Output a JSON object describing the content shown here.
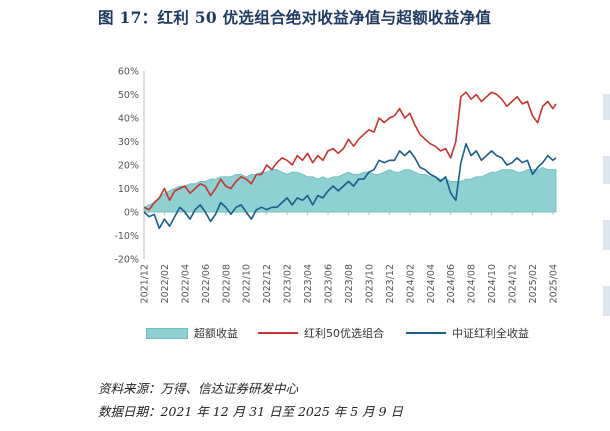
{
  "figure": {
    "title": "图 17：红利 50 优选组合绝对收益净值与超额收益净值",
    "source": "资料来源：万得、信达证券研发中心",
    "date_range": "数据日期：2021 年 12 月 31 日至 2025 年 5 月 9 日"
  },
  "colors": {
    "excess_fill": "#8fd1d3",
    "excess_stroke": "#66bcbf",
    "portfolio": "#c8342f",
    "index": "#1a5c8a",
    "axis_text": "#555555",
    "title": "#1f3a60"
  },
  "chart_data": {
    "type": "area",
    "ylim": [
      -20,
      60
    ],
    "y_ticks": [
      "-20%",
      "-10%",
      "0%",
      "10%",
      "20%",
      "30%",
      "40%",
      "50%",
      "60%"
    ],
    "x_ticks": [
      "2021/12",
      "2022/02",
      "2022/04",
      "2022/06",
      "2022/08",
      "2022/10",
      "2022/12",
      "2023/02",
      "2023/04",
      "2023/06",
      "2023/08",
      "2023/10",
      "2023/12",
      "2024/02",
      "2024/04",
      "2024/06",
      "2024/08",
      "2024/10",
      "2024/12",
      "2025/02",
      "2025/04"
    ],
    "xlim_months": [
      0,
      40.3
    ],
    "grid": false,
    "legend_position": "bottom",
    "series": [
      {
        "name": "超额收益",
        "type": "area",
        "x": [
          0,
          0.5,
          1,
          1.5,
          2,
          2.5,
          3,
          3.5,
          4,
          4.5,
          5,
          5.5,
          6,
          6.5,
          7,
          7.5,
          8,
          8.5,
          9,
          9.5,
          10,
          10.5,
          11,
          11.5,
          12,
          12.5,
          13,
          13.5,
          14,
          14.5,
          15,
          15.5,
          16,
          16.5,
          17,
          17.5,
          18,
          18.5,
          19,
          19.5,
          20,
          20.5,
          21,
          21.5,
          22,
          22.5,
          23,
          23.5,
          24,
          24.5,
          25,
          25.5,
          26,
          26.5,
          27,
          27.5,
          28,
          28.5,
          29,
          29.5,
          30,
          30.5,
          31,
          31.5,
          32,
          32.5,
          33,
          33.5,
          34,
          34.5,
          35,
          35.5,
          36,
          36.5,
          37,
          37.5,
          38,
          38.5,
          39,
          39.5,
          40,
          40.3
        ],
        "values": [
          2,
          3,
          4,
          6,
          8,
          9,
          10,
          11,
          11,
          12,
          12,
          13,
          13,
          14,
          14,
          15,
          15,
          15,
          16,
          16,
          15,
          16,
          16,
          17,
          17,
          18,
          18,
          17,
          16,
          17,
          17,
          16,
          15,
          15,
          14,
          15,
          14,
          15,
          15,
          16,
          17,
          16,
          16,
          17,
          17,
          16,
          16,
          17,
          18,
          17,
          17,
          18,
          18,
          17,
          16,
          16,
          15,
          15,
          14,
          14,
          13,
          13,
          13,
          14,
          14,
          15,
          15,
          16,
          17,
          17,
          18,
          18,
          18,
          17,
          17,
          18,
          18,
          18,
          19,
          18,
          18,
          18
        ]
      },
      {
        "name": "红利50优选组合",
        "type": "line",
        "x": [
          0,
          0.5,
          1,
          1.5,
          2,
          2.5,
          3,
          3.5,
          4,
          4.5,
          5,
          5.5,
          6,
          6.5,
          7,
          7.5,
          8,
          8.5,
          9,
          9.5,
          10,
          10.5,
          11,
          11.5,
          12,
          12.5,
          13,
          13.5,
          14,
          14.5,
          15,
          15.5,
          16,
          16.5,
          17,
          17.5,
          18,
          18.5,
          19,
          19.5,
          20,
          20.5,
          21,
          21.5,
          22,
          22.5,
          23,
          23.5,
          24,
          24.5,
          25,
          25.5,
          26,
          26.5,
          27,
          27.5,
          28,
          28.5,
          29,
          29.5,
          30,
          30.5,
          31,
          31.5,
          32,
          32.5,
          33,
          33.5,
          34,
          34.5,
          35,
          35.5,
          36,
          36.5,
          37,
          37.5,
          38,
          38.5,
          39,
          39.5,
          40,
          40.3
        ],
        "values": [
          2,
          1,
          4,
          6,
          10,
          5,
          9,
          10,
          11,
          8,
          10,
          12,
          11,
          7,
          10,
          14,
          11,
          10,
          13,
          15,
          14,
          12,
          16,
          16,
          20,
          18,
          21,
          23,
          22,
          20,
          24,
          22,
          25,
          21,
          24,
          22,
          26,
          27,
          25,
          27,
          31,
          28,
          31,
          33,
          35,
          34,
          40,
          38,
          40,
          41,
          44,
          40,
          42,
          37,
          33,
          31,
          29,
          28,
          26,
          27,
          23,
          30,
          49,
          51,
          48,
          50,
          47,
          49,
          51,
          50,
          48,
          45,
          47,
          49,
          46,
          47,
          41,
          38,
          45,
          47,
          44,
          46
        ]
      },
      {
        "name": "中证红利全收益",
        "type": "line",
        "x": [
          0,
          0.5,
          1,
          1.5,
          2,
          2.5,
          3,
          3.5,
          4,
          4.5,
          5,
          5.5,
          6,
          6.5,
          7,
          7.5,
          8,
          8.5,
          9,
          9.5,
          10,
          10.5,
          11,
          11.5,
          12,
          12.5,
          13,
          13.5,
          14,
          14.5,
          15,
          15.5,
          16,
          16.5,
          17,
          17.5,
          18,
          18.5,
          19,
          19.5,
          20,
          20.5,
          21,
          21.5,
          22,
          22.5,
          23,
          23.5,
          24,
          24.5,
          25,
          25.5,
          26,
          26.5,
          27,
          27.5,
          28,
          28.5,
          29,
          29.5,
          30,
          30.5,
          31,
          31.5,
          32,
          32.5,
          33,
          33.5,
          34,
          34.5,
          35,
          35.5,
          36,
          36.5,
          37,
          37.5,
          38,
          38.5,
          39,
          39.5,
          40,
          40.3
        ],
        "values": [
          0,
          -2,
          -1,
          -7,
          -3,
          -6,
          -2,
          2,
          0,
          -3,
          1,
          3,
          0,
          -4,
          -1,
          4,
          2,
          -1,
          2,
          3,
          0,
          -3,
          1,
          2,
          1,
          2,
          2,
          4,
          6,
          3,
          6,
          5,
          7,
          3,
          7,
          6,
          9,
          11,
          9,
          11,
          13,
          11,
          14,
          14,
          17,
          18,
          22,
          21,
          22,
          22,
          26,
          24,
          26,
          23,
          19,
          18,
          16,
          15,
          13,
          15,
          8,
          5,
          21,
          29,
          24,
          26,
          22,
          24,
          26,
          24,
          23,
          20,
          21,
          23,
          21,
          22,
          16,
          19,
          21,
          24,
          22,
          23
        ]
      }
    ]
  }
}
